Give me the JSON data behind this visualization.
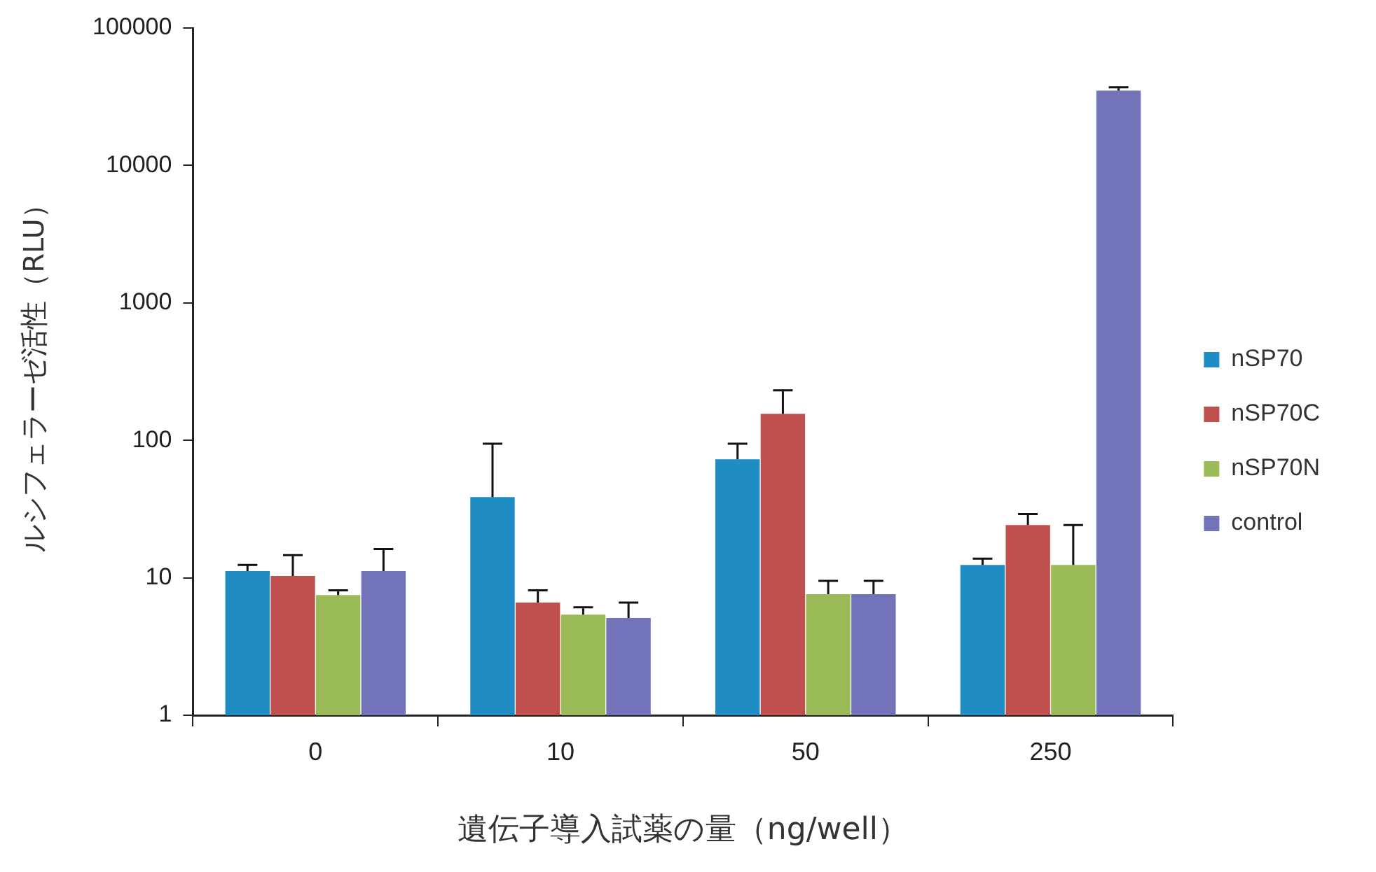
{
  "chart_data": {
    "type": "bar",
    "xlabel": "遺伝子導入試薬の量（ng/well）",
    "ylabel": "ルシフェラーゼ活性（RLU）",
    "categories": [
      "0",
      "10",
      "50",
      "250"
    ],
    "series": [
      {
        "name": "nSP70",
        "color": "#1f8dc3",
        "values": [
          11.2,
          38.7,
          72.8,
          12.4
        ],
        "errors": [
          [
            11.2,
            12.4
          ],
          [
            38.7,
            94.6
          ],
          [
            72.8,
            94.6
          ],
          [
            12.4,
            13.8
          ]
        ]
      },
      {
        "name": "nSP70C",
        "color": "#c0504d",
        "values": [
          10.3,
          6.6,
          156,
          24.2
        ],
        "errors": [
          [
            10.3,
            14.6
          ],
          [
            6.6,
            8.1
          ],
          [
            156,
            231
          ],
          [
            24.2,
            29.1
          ]
        ]
      },
      {
        "name": "nSP70N",
        "color": "#9bbb59",
        "values": [
          7.5,
          5.4,
          7.6,
          12.4
        ],
        "errors": [
          [
            7.5,
            8.1
          ],
          [
            5.4,
            6.1
          ],
          [
            7.6,
            9.5
          ],
          [
            12.4,
            24.2
          ]
        ]
      },
      {
        "name": "control",
        "color": "#7373b9",
        "values": [
          11.2,
          5.1,
          7.6,
          35000
        ],
        "errors": [
          [
            11.2,
            16.2
          ],
          [
            5.1,
            6.6
          ],
          [
            7.6,
            9.5
          ],
          [
            35000,
            37000
          ]
        ]
      }
    ],
    "log": true,
    "ylim": [
      1,
      100000
    ],
    "yticks": [
      1,
      10,
      100,
      1000,
      10000,
      100000
    ],
    "grid": false,
    "legend": "right"
  }
}
